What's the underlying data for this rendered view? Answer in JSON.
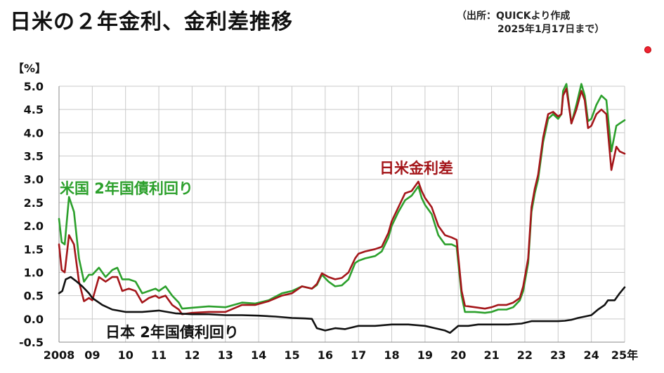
{
  "title": "日米の２年金利、金利差推移",
  "source": {
    "line1": "（出所：QUICKより作成",
    "line2": "2025年1月17日まで）"
  },
  "chart_data": {
    "type": "line",
    "ylabel": "【%】",
    "ylim": [
      -0.5,
      5.0
    ],
    "yticks": [
      5.0,
      4.5,
      4.0,
      3.5,
      3.0,
      2.5,
      2.0,
      1.5,
      1.0,
      0.5,
      0.0,
      -0.5
    ],
    "xlim": [
      2008,
      2025
    ],
    "xticks": [
      {
        "value": 2008,
        "label": "2008"
      },
      {
        "value": 2009,
        "label": "09"
      },
      {
        "value": 2010,
        "label": "10"
      },
      {
        "value": 2011,
        "label": "11"
      },
      {
        "value": 2012,
        "label": "12"
      },
      {
        "value": 2013,
        "label": "13"
      },
      {
        "value": 2014,
        "label": "14"
      },
      {
        "value": 2015,
        "label": "15"
      },
      {
        "value": 2016,
        "label": "16"
      },
      {
        "value": 2017,
        "label": "17"
      },
      {
        "value": 2018,
        "label": "18"
      },
      {
        "value": 2019,
        "label": "19"
      },
      {
        "value": 2020,
        "label": "20"
      },
      {
        "value": 2021,
        "label": "21"
      },
      {
        "value": 2022,
        "label": "22"
      },
      {
        "value": 2023,
        "label": "23"
      },
      {
        "value": 2024,
        "label": "24"
      },
      {
        "value": 2025,
        "label": "25年"
      }
    ],
    "grid": true,
    "series": [
      {
        "name": "米国 2年国債利回り",
        "color": "#2ca02c",
        "x": [
          2008.0,
          2008.08,
          2008.17,
          2008.3,
          2008.45,
          2008.6,
          2008.75,
          2008.9,
          2009.0,
          2009.2,
          2009.4,
          2009.6,
          2009.75,
          2009.9,
          2010.1,
          2010.3,
          2010.5,
          2010.7,
          2010.9,
          2011.0,
          2011.2,
          2011.4,
          2011.6,
          2011.7,
          2012.0,
          2012.5,
          2013.0,
          2013.5,
          2013.9,
          2014.3,
          2014.7,
          2015.0,
          2015.3,
          2015.6,
          2015.75,
          2015.9,
          2016.1,
          2016.3,
          2016.5,
          2016.7,
          2016.9,
          2017.0,
          2017.2,
          2017.5,
          2017.7,
          2017.9,
          2018.0,
          2018.2,
          2018.4,
          2018.6,
          2018.8,
          2018.9,
          2019.0,
          2019.2,
          2019.4,
          2019.6,
          2019.8,
          2019.95,
          2020.1,
          2020.2,
          2020.5,
          2020.8,
          2021.0,
          2021.2,
          2021.45,
          2021.65,
          2021.85,
          2021.95,
          2022.1,
          2022.2,
          2022.3,
          2022.4,
          2022.55,
          2022.7,
          2022.85,
          2023.0,
          2023.1,
          2023.15,
          2023.25,
          2023.4,
          2023.55,
          2023.7,
          2023.8,
          2023.9,
          2024.0,
          2024.15,
          2024.3,
          2024.45,
          2024.6,
          2024.75,
          2024.85,
          2025.0
        ],
        "y": [
          2.15,
          1.65,
          1.6,
          2.62,
          2.3,
          1.3,
          0.8,
          0.95,
          0.95,
          1.1,
          0.9,
          1.05,
          1.1,
          0.85,
          0.85,
          0.8,
          0.55,
          0.6,
          0.65,
          0.6,
          0.7,
          0.5,
          0.35,
          0.22,
          0.24,
          0.27,
          0.25,
          0.35,
          0.33,
          0.4,
          0.55,
          0.6,
          0.7,
          0.65,
          0.73,
          0.95,
          0.8,
          0.7,
          0.72,
          0.85,
          1.2,
          1.25,
          1.3,
          1.35,
          1.45,
          1.75,
          2.0,
          2.3,
          2.55,
          2.65,
          2.85,
          2.6,
          2.45,
          2.25,
          1.8,
          1.6,
          1.6,
          1.55,
          0.5,
          0.15,
          0.15,
          0.13,
          0.15,
          0.2,
          0.2,
          0.25,
          0.4,
          0.6,
          1.2,
          2.3,
          2.7,
          3.0,
          3.8,
          4.3,
          4.4,
          4.3,
          4.4,
          4.9,
          5.05,
          4.2,
          4.6,
          5.05,
          4.8,
          4.25,
          4.3,
          4.6,
          4.8,
          4.7,
          3.6,
          4.15,
          4.2,
          4.27
        ]
      },
      {
        "name": "日米金利差",
        "color": "#a4161a",
        "x": [
          2008.0,
          2008.08,
          2008.17,
          2008.3,
          2008.45,
          2008.6,
          2008.75,
          2008.9,
          2009.0,
          2009.2,
          2009.4,
          2009.6,
          2009.75,
          2009.9,
          2010.1,
          2010.3,
          2010.5,
          2010.7,
          2010.9,
          2011.0,
          2011.2,
          2011.4,
          2011.6,
          2011.7,
          2012.0,
          2012.5,
          2013.0,
          2013.5,
          2013.9,
          2014.3,
          2014.7,
          2015.0,
          2015.3,
          2015.6,
          2015.75,
          2015.9,
          2016.1,
          2016.3,
          2016.5,
          2016.7,
          2016.9,
          2017.0,
          2017.2,
          2017.5,
          2017.7,
          2017.9,
          2018.0,
          2018.2,
          2018.4,
          2018.6,
          2018.8,
          2018.9,
          2019.0,
          2019.2,
          2019.4,
          2019.6,
          2019.8,
          2019.95,
          2020.1,
          2020.2,
          2020.5,
          2020.8,
          2021.0,
          2021.2,
          2021.45,
          2021.65,
          2021.85,
          2021.95,
          2022.1,
          2022.2,
          2022.3,
          2022.4,
          2022.55,
          2022.7,
          2022.85,
          2023.0,
          2023.1,
          2023.15,
          2023.25,
          2023.4,
          2023.55,
          2023.7,
          2023.8,
          2023.9,
          2024.0,
          2024.15,
          2024.3,
          2024.45,
          2024.6,
          2024.75,
          2024.85,
          2025.0
        ],
        "y": [
          1.6,
          1.05,
          1.0,
          1.8,
          1.6,
          0.8,
          0.38,
          0.45,
          0.4,
          0.9,
          0.8,
          0.9,
          0.9,
          0.6,
          0.65,
          0.6,
          0.35,
          0.45,
          0.5,
          0.45,
          0.5,
          0.3,
          0.2,
          0.1,
          0.13,
          0.15,
          0.15,
          0.3,
          0.3,
          0.38,
          0.5,
          0.55,
          0.7,
          0.65,
          0.75,
          0.98,
          0.9,
          0.85,
          0.88,
          1.0,
          1.3,
          1.4,
          1.45,
          1.5,
          1.55,
          1.85,
          2.1,
          2.4,
          2.7,
          2.75,
          2.95,
          2.75,
          2.6,
          2.4,
          2.0,
          1.8,
          1.75,
          1.7,
          0.6,
          0.28,
          0.25,
          0.22,
          0.25,
          0.3,
          0.3,
          0.35,
          0.45,
          0.7,
          1.3,
          2.4,
          2.8,
          3.1,
          3.9,
          4.4,
          4.45,
          4.35,
          4.4,
          4.8,
          4.95,
          4.2,
          4.5,
          4.9,
          4.7,
          4.1,
          4.15,
          4.4,
          4.5,
          4.4,
          3.2,
          3.7,
          3.6,
          3.55
        ]
      },
      {
        "name": "日本 2年国債利回り",
        "color": "#111111",
        "x": [
          2008.0,
          2008.1,
          2008.2,
          2008.35,
          2008.5,
          2008.7,
          2008.9,
          2009.0,
          2009.3,
          2009.6,
          2010.0,
          2010.5,
          2011.0,
          2011.5,
          2012.0,
          2012.5,
          2013.0,
          2013.5,
          2014.0,
          2014.5,
          2015.0,
          2015.4,
          2015.6,
          2015.75,
          2016.0,
          2016.3,
          2016.6,
          2017.0,
          2017.5,
          2018.0,
          2018.5,
          2019.0,
          2019.3,
          2019.6,
          2019.75,
          2020.0,
          2020.3,
          2020.6,
          2021.0,
          2021.5,
          2021.9,
          2022.2,
          2022.5,
          2022.8,
          2023.0,
          2023.2,
          2023.4,
          2023.6,
          2023.8,
          2024.0,
          2024.2,
          2024.4,
          2024.5,
          2024.7,
          2024.85,
          2025.0
        ],
        "y": [
          0.55,
          0.6,
          0.85,
          0.9,
          0.82,
          0.7,
          0.55,
          0.45,
          0.3,
          0.2,
          0.15,
          0.15,
          0.18,
          0.12,
          0.1,
          0.1,
          0.08,
          0.08,
          0.07,
          0.05,
          0.02,
          0.01,
          0.0,
          -0.2,
          -0.25,
          -0.2,
          -0.22,
          -0.15,
          -0.15,
          -0.12,
          -0.12,
          -0.15,
          -0.2,
          -0.25,
          -0.3,
          -0.15,
          -0.15,
          -0.12,
          -0.12,
          -0.12,
          -0.1,
          -0.05,
          -0.05,
          -0.05,
          -0.05,
          -0.04,
          -0.02,
          0.02,
          0.05,
          0.08,
          0.2,
          0.3,
          0.4,
          0.4,
          0.55,
          0.68
        ]
      }
    ],
    "annotations": {
      "us": "米国  2年国債利回り",
      "spread": "日米金利差",
      "jp": "日本  2年国債利回り"
    }
  }
}
